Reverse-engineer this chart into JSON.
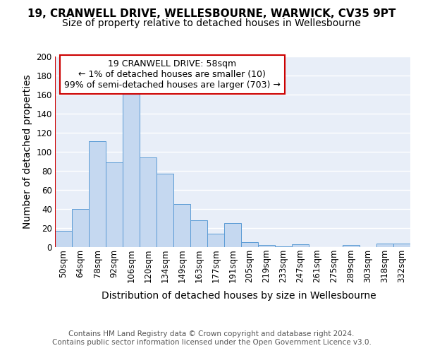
{
  "title1": "19, CRANWELL DRIVE, WELLESBOURNE, WARWICK, CV35 9PT",
  "title2": "Size of property relative to detached houses in Wellesbourne",
  "xlabel": "Distribution of detached houses by size in Wellesbourne",
  "ylabel": "Number of detached properties",
  "footer1": "Contains HM Land Registry data © Crown copyright and database right 2024.",
  "footer2": "Contains public sector information licensed under the Open Government Licence v3.0.",
  "annotation_line1": "19 CRANWELL DRIVE: 58sqm",
  "annotation_line2": "← 1% of detached houses are smaller (10)",
  "annotation_line3": "99% of semi-detached houses are larger (703) →",
  "bar_labels": [
    "50sqm",
    "64sqm",
    "78sqm",
    "92sqm",
    "106sqm",
    "120sqm",
    "134sqm",
    "149sqm",
    "163sqm",
    "177sqm",
    "191sqm",
    "205sqm",
    "219sqm",
    "233sqm",
    "247sqm",
    "261sqm",
    "275sqm",
    "289sqm",
    "303sqm",
    "318sqm",
    "332sqm"
  ],
  "bar_values": [
    17,
    40,
    111,
    89,
    163,
    94,
    77,
    45,
    28,
    14,
    25,
    5,
    2,
    1,
    3,
    0,
    0,
    2,
    0,
    4,
    4
  ],
  "bar_color": "#c5d8f0",
  "bar_edge_color": "#5b9bd5",
  "ylim": [
    0,
    200
  ],
  "yticks": [
    0,
    20,
    40,
    60,
    80,
    100,
    120,
    140,
    160,
    180,
    200
  ],
  "bg_color": "#ffffff",
  "plot_bg_color": "#e8eef8",
  "grid_color": "#ffffff",
  "annotation_box_edge": "#cc0000",
  "vline_color": "#cc0000",
  "title_fontsize": 11,
  "subtitle_fontsize": 10,
  "axis_label_fontsize": 10,
  "tick_fontsize": 8.5,
  "footer_fontsize": 7.5,
  "annotation_fontsize": 9
}
